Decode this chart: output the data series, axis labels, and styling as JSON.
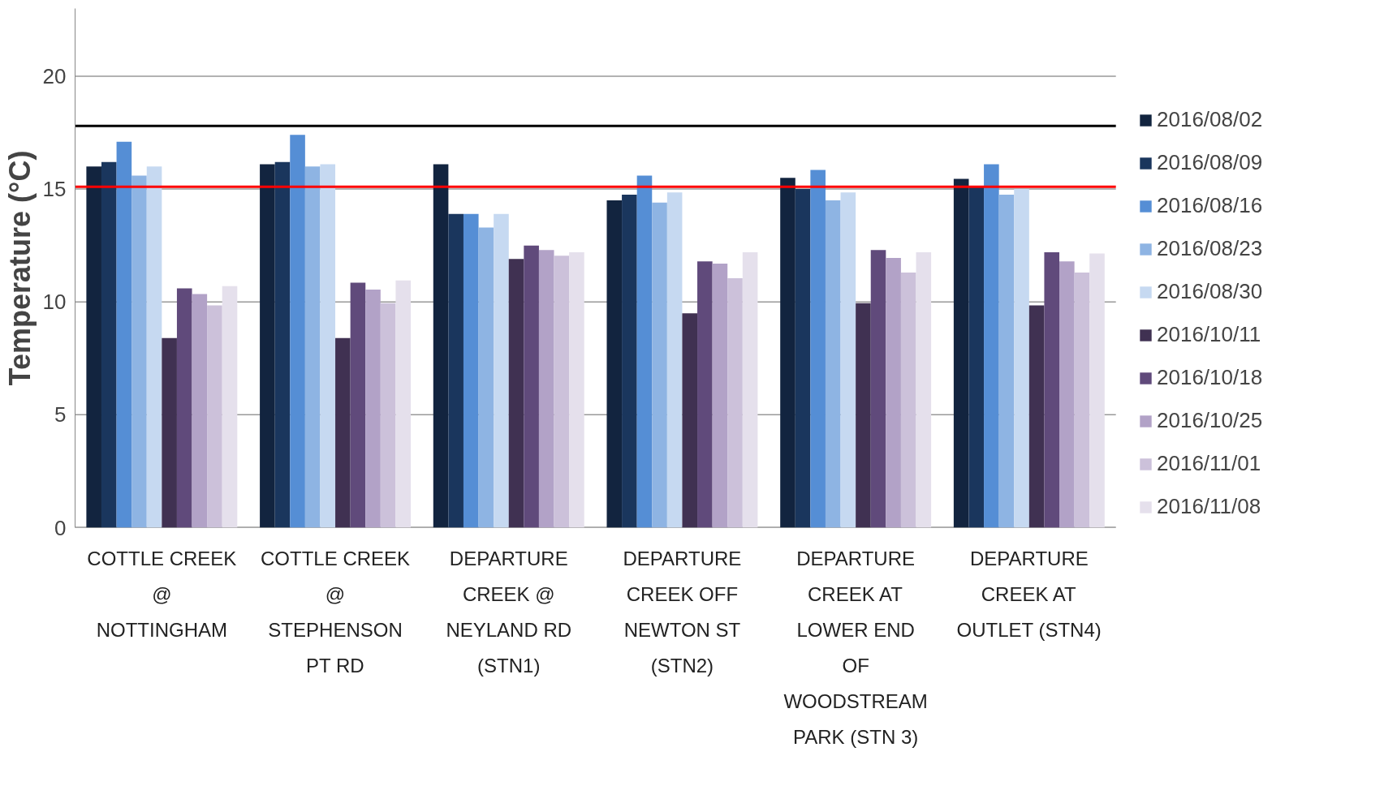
{
  "chart_data": {
    "type": "bar",
    "ylabel": "Temperature (°C)",
    "categories": [
      "COTTLE CREEK\n@\nNOTTINGHAM",
      "COTTLE CREEK\n@\nSTEPHENSON\nPT RD",
      "DEPARTURE\nCREEK @\nNEYLAND RD\n(STN1)",
      "DEPARTURE\nCREEK OFF\nNEWTON ST\n(STN2)",
      "DEPARTURE\nCREEK AT\nLOWER END\nOF\nWOODSTREAM\nPARK (STN 3)",
      "DEPARTURE\nCREEK AT\nOUTLET (STN4)"
    ],
    "series": [
      {
        "name": "2016/08/02",
        "color": "#12243f",
        "values": [
          16.0,
          16.1,
          16.1,
          14.5,
          15.5,
          15.45
        ]
      },
      {
        "name": "2016/08/09",
        "color": "#1a365d",
        "values": [
          16.2,
          16.2,
          13.9,
          14.75,
          15.0,
          15.1
        ]
      },
      {
        "name": "2016/08/16",
        "color": "#558ed5",
        "values": [
          17.1,
          17.4,
          13.9,
          15.6,
          15.85,
          16.1
        ]
      },
      {
        "name": "2016/08/23",
        "color": "#8eb4e3",
        "values": [
          15.6,
          16.0,
          13.3,
          14.4,
          14.5,
          14.75
        ]
      },
      {
        "name": "2016/08/30",
        "color": "#c6d9f1",
        "values": [
          16.0,
          16.1,
          13.9,
          14.85,
          14.85,
          15.0
        ]
      },
      {
        "name": "2016/10/11",
        "color": "#403152",
        "values": [
          8.4,
          8.4,
          11.9,
          9.5,
          9.95,
          9.85
        ]
      },
      {
        "name": "2016/10/18",
        "color": "#604a7b",
        "values": [
          10.6,
          10.85,
          12.5,
          11.8,
          12.3,
          12.2
        ]
      },
      {
        "name": "2016/10/25",
        "color": "#b2a2c7",
        "values": [
          10.35,
          10.55,
          12.3,
          11.7,
          11.95,
          11.8
        ]
      },
      {
        "name": "2016/11/01",
        "color": "#ccc1da",
        "values": [
          9.85,
          9.95,
          12.05,
          11.05,
          11.3,
          11.3
        ]
      },
      {
        "name": "2016/11/08",
        "color": "#e5e0ec",
        "values": [
          10.7,
          10.95,
          12.2,
          12.2,
          12.2,
          12.15
        ]
      }
    ],
    "ylim": [
      0,
      23
    ],
    "yticks": [
      0,
      5,
      10,
      15,
      20
    ],
    "grid": "y",
    "legend": "right",
    "ref_lines": [
      {
        "axis": "y",
        "value": 17.8,
        "color": "#000000"
      },
      {
        "axis": "y",
        "value": 15.1,
        "color": "#ff0000"
      }
    ]
  }
}
